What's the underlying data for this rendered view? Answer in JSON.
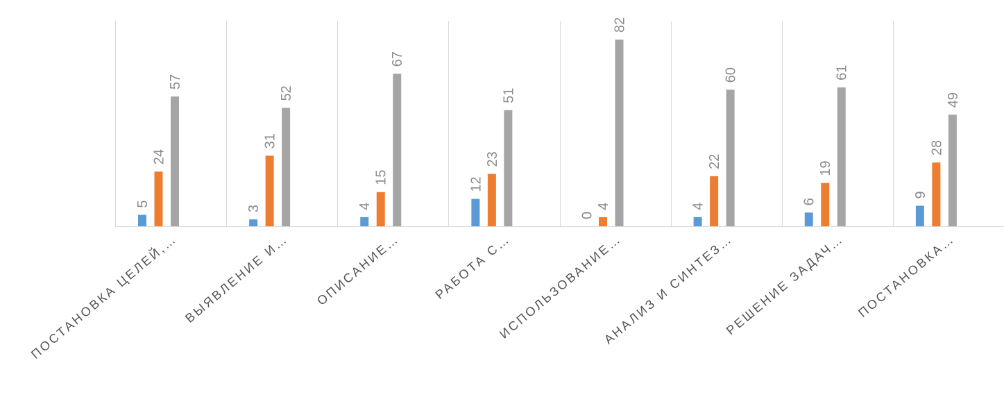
{
  "chart_data": {
    "type": "bar",
    "title": "",
    "xlabel": "",
    "ylabel": "",
    "ylim": [
      0,
      90
    ],
    "grid": {
      "vertical_category_separators": true,
      "horizontal": false
    },
    "legend": "none",
    "categories": [
      "ПОСТАНОВКА ЦЕЛЕЙ,…",
      "ВЫЯВЛЕНИЕ И…",
      "ОПИСАНИЕ…",
      "РАБОТА С…",
      "ИСПОЛЬЗОВАНИЕ…",
      "АНАЛИЗ И СИНТЕЗ…",
      "РЕШЕНИЕ ЗАДАЧ…",
      "ПОСТАНОВКА…"
    ],
    "series": [
      {
        "color": "#5b9bd5",
        "values": [
          5,
          3,
          4,
          12,
          0,
          4,
          6,
          9
        ]
      },
      {
        "color": "#ed7d31",
        "values": [
          24,
          31,
          15,
          23,
          4,
          22,
          19,
          28
        ]
      },
      {
        "color": "#a5a5a5",
        "values": [
          57,
          52,
          67,
          51,
          82,
          60,
          61,
          49
        ]
      }
    ],
    "axis_color": "#d9d9d9",
    "label_color": "#8c8c8c",
    "category_label_color": "#555555"
  }
}
